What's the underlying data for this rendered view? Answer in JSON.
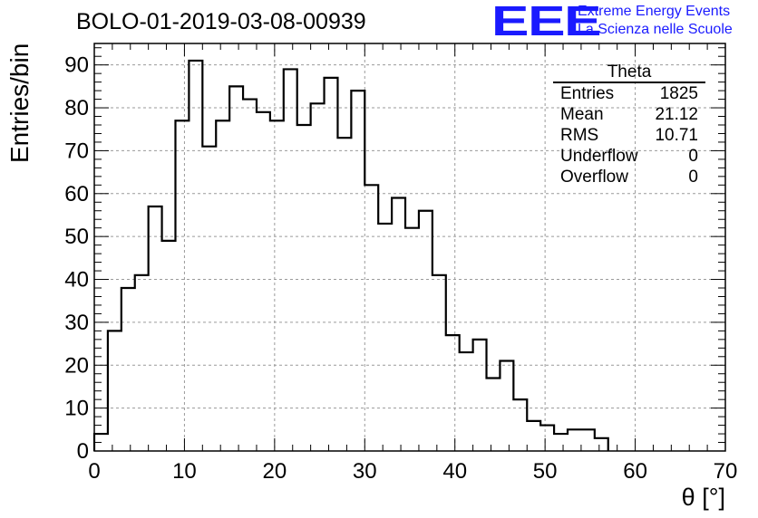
{
  "title": "BOLO-01-2019-03-08-00939",
  "logo": {
    "mark": "EEE",
    "line1": "Extreme Energy Events",
    "line2": "La Scienza nelle Scuole",
    "color": "#1a1aff"
  },
  "stats_box": {
    "title": "Theta",
    "rows": [
      {
        "label": "Entries",
        "value": "1825"
      },
      {
        "label": "Mean",
        "value": "21.12"
      },
      {
        "label": "RMS",
        "value": "10.71"
      },
      {
        "label": "Underflow",
        "value": "0"
      },
      {
        "label": "Overflow",
        "value": "0"
      }
    ]
  },
  "chart_data": {
    "type": "bar",
    "style": "step-histogram",
    "title": "BOLO-01-2019-03-08-00939",
    "xlabel": "θ [°]",
    "ylabel": "Entries/bin",
    "xlim": [
      0,
      70
    ],
    "ylim": [
      0,
      95
    ],
    "bin_width": 1.5,
    "bin_start": 0,
    "values": [
      4,
      28,
      38,
      41,
      57,
      49,
      77,
      91,
      71,
      77,
      85,
      82,
      79,
      77,
      89,
      76,
      81,
      87,
      73,
      84,
      62,
      53,
      59,
      52,
      56,
      41,
      27,
      23,
      26,
      17,
      21,
      12,
      7,
      6,
      4,
      5,
      5,
      3
    ],
    "x_ticks": [
      0,
      10,
      20,
      30,
      40,
      50,
      60,
      70
    ],
    "y_ticks": [
      0,
      10,
      20,
      30,
      40,
      50,
      60,
      70,
      80,
      90
    ],
    "grid": true,
    "line_color": "#000000"
  }
}
